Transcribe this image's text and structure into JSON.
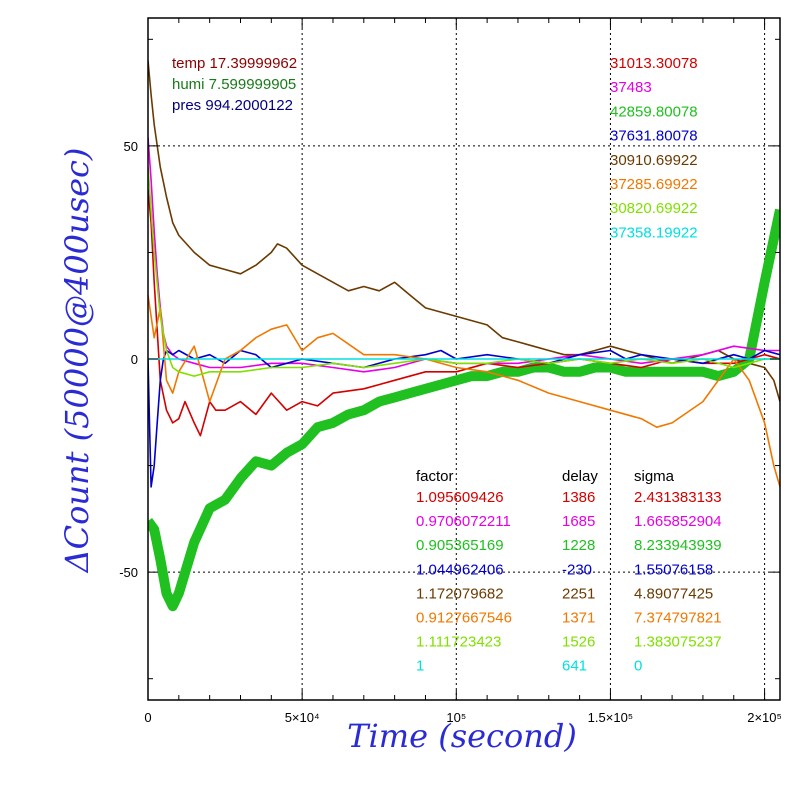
{
  "chart_data": {
    "type": "line",
    "title": "",
    "xlabel": "Time (second)",
    "ylabel": "ΔCount (50000@400usec)",
    "xlim": [
      0,
      205000
    ],
    "ylim": [
      -80,
      80
    ],
    "grid": true,
    "x_ticks": [
      {
        "value": 0,
        "label": "0"
      },
      {
        "value": 50000,
        "label": "5×10⁴"
      },
      {
        "value": 100000,
        "label": "10⁵"
      },
      {
        "value": 150000,
        "label": "1.5×10⁵"
      },
      {
        "value": 200000,
        "label": "2×10⁵"
      }
    ],
    "y_ticks": [
      {
        "value": 50,
        "label": "50"
      },
      {
        "value": 0,
        "label": "0"
      },
      {
        "value": -50,
        "label": "-50"
      }
    ],
    "env_readings": [
      {
        "text": "temp 17.39999962",
        "color": "#8b0000"
      },
      {
        "text": "humi 7.599999905",
        "color": "#1a7a1a"
      },
      {
        "text": "pres 994.2000122",
        "color": "#000080"
      }
    ],
    "counts": [
      {
        "text": "31013.30078",
        "color": "#d40000"
      },
      {
        "text": "37483",
        "color": "#e600e6"
      },
      {
        "text": "42859.80078",
        "color": "#20c020"
      },
      {
        "text": "37631.80078",
        "color": "#0000cc"
      },
      {
        "text": "30910.69922",
        "color": "#6b3a00"
      },
      {
        "text": "37285.69922",
        "color": "#f07800"
      },
      {
        "text": "30820.69922",
        "color": "#80e000"
      },
      {
        "text": "37358.19922",
        "color": "#00e0e0"
      }
    ],
    "table_headers": [
      "factor",
      "delay",
      "sigma"
    ],
    "table_rows": [
      {
        "factor": "1.095609426",
        "delay": "1386",
        "sigma": "2.431383133",
        "color": "#d40000"
      },
      {
        "factor": "0.9706072211",
        "delay": "1685",
        "sigma": "1.665852904",
        "color": "#e600e6"
      },
      {
        "factor": "0.905365169",
        "delay": "1228",
        "sigma": "8.233943939",
        "color": "#20c020"
      },
      {
        "factor": "1.044962406",
        "delay": "-230",
        "sigma": "1.55076158",
        "color": "#0000cc"
      },
      {
        "factor": "1.172079682",
        "delay": "2251",
        "sigma": "4.89077425",
        "color": "#6b3a00"
      },
      {
        "factor": "0.9127667546",
        "delay": "1371",
        "sigma": "7.374797821",
        "color": "#f07800"
      },
      {
        "factor": "1.111723423",
        "delay": "1526",
        "sigma": "1.383075237",
        "color": "#80e000"
      },
      {
        "factor": "1",
        "delay": "641",
        "sigma": "0",
        "color": "#00e0e0"
      }
    ],
    "series": [
      {
        "color": "#6b3a00",
        "x": [
          0,
          1000,
          2000,
          4000,
          6000,
          8000,
          10000,
          15000,
          20000,
          25000,
          30000,
          35000,
          40000,
          42000,
          45000,
          50000,
          55000,
          60000,
          65000,
          70000,
          75000,
          80000,
          85000,
          90000,
          95000,
          100000,
          105000,
          110000,
          115000,
          120000,
          125000,
          130000,
          135000,
          140000,
          145000,
          150000,
          155000,
          160000,
          165000,
          170000,
          175000,
          180000,
          185000,
          190000,
          195000,
          200000,
          203000,
          205000
        ],
        "y": [
          70,
          62,
          55,
          45,
          38,
          32,
          29,
          25,
          22,
          21,
          20,
          22,
          25,
          27,
          26,
          22,
          20,
          18,
          16,
          17,
          16,
          18,
          15,
          12,
          11,
          10,
          9,
          8,
          5,
          4,
          3,
          2,
          1,
          1,
          2,
          3,
          2,
          1,
          0,
          -1,
          0,
          1,
          2,
          0,
          -1,
          -2,
          -5,
          -10
        ]
      },
      {
        "color": "#20c020",
        "x": [
          0,
          2000,
          4000,
          6000,
          8000,
          10000,
          15000,
          20000,
          25000,
          30000,
          35000,
          40000,
          45000,
          50000,
          55000,
          60000,
          65000,
          70000,
          75000,
          80000,
          85000,
          90000,
          95000,
          100000,
          105000,
          110000,
          115000,
          120000,
          125000,
          130000,
          135000,
          140000,
          145000,
          150000,
          155000,
          160000,
          165000,
          170000,
          175000,
          180000,
          185000,
          190000,
          195000,
          200000,
          205000
        ],
        "y": [
          -38,
          -40,
          -47,
          -55,
          -58,
          -55,
          -43,
          -35,
          -33,
          -28,
          -24,
          -25,
          -22,
          -20,
          -16,
          -15,
          -13,
          -12,
          -10,
          -9,
          -8,
          -7,
          -6,
          -5,
          -4,
          -4,
          -3,
          -3,
          -2,
          -2,
          -3,
          -3,
          -2,
          -2,
          -3,
          -3,
          -3,
          -3,
          -3,
          -3,
          -4,
          -3,
          0,
          18,
          35
        ]
      },
      {
        "color": "#d40000",
        "x": [
          0,
          1000,
          2000,
          4000,
          6000,
          8000,
          10000,
          12000,
          15000,
          17000,
          20000,
          22000,
          25000,
          30000,
          35000,
          40000,
          45000,
          50000,
          55000,
          60000,
          70000,
          80000,
          90000,
          100000,
          110000,
          120000,
          130000,
          140000,
          150000,
          160000,
          170000,
          180000,
          190000,
          200000,
          205000
        ],
        "y": [
          40,
          32,
          18,
          -5,
          -12,
          -15,
          -14,
          -10,
          -15,
          -18,
          -10,
          -12,
          -12,
          -10,
          -13,
          -8,
          -12,
          -10,
          -11,
          -8,
          -7,
          -5,
          -3,
          -3,
          -1,
          -2,
          -1,
          0,
          -1,
          -2,
          0,
          -1,
          -1,
          1,
          0
        ]
      },
      {
        "color": "#e600e6",
        "x": [
          0,
          1000,
          2000,
          3000,
          4000,
          5000,
          6000,
          8000,
          10000,
          15000,
          20000,
          30000,
          40000,
          50000,
          60000,
          70000,
          80000,
          90000,
          100000,
          120000,
          140000,
          160000,
          180000,
          190000,
          200000,
          205000
        ],
        "y": [
          52,
          42,
          30,
          20,
          12,
          6,
          3,
          1,
          0,
          -1,
          -2,
          -2,
          -1,
          -1,
          -2,
          -3,
          -2,
          0,
          -1,
          -1,
          1,
          -1,
          1,
          3,
          2,
          2
        ]
      },
      {
        "color": "#0000cc",
        "x": [
          0,
          500,
          1000,
          2000,
          3000,
          4000,
          5000,
          6000,
          8000,
          10000,
          15000,
          20000,
          25000,
          30000,
          35000,
          40000,
          45000,
          50000,
          60000,
          70000,
          80000,
          90000,
          95000,
          100000,
          110000,
          120000,
          130000,
          140000,
          150000,
          155000,
          160000,
          170000,
          180000,
          190000,
          195000,
          200000,
          205000
        ],
        "y": [
          0,
          -15,
          -30,
          -25,
          -15,
          -5,
          0,
          2,
          1,
          2,
          0,
          1,
          -1,
          2,
          1,
          -2,
          -1,
          0,
          -1,
          -2,
          0,
          1,
          2,
          0,
          1,
          0,
          -1,
          1,
          2,
          0,
          1,
          0,
          -1,
          1,
          0,
          2,
          1
        ]
      },
      {
        "color": "#f07800",
        "x": [
          0,
          2000,
          4000,
          6000,
          8000,
          10000,
          15000,
          17000,
          20000,
          25000,
          30000,
          35000,
          40000,
          45000,
          50000,
          55000,
          60000,
          70000,
          80000,
          90000,
          100000,
          110000,
          120000,
          130000,
          140000,
          150000,
          160000,
          165000,
          170000,
          180000,
          185000,
          190000,
          195000,
          200000,
          203000,
          205000
        ],
        "y": [
          15,
          5,
          12,
          -5,
          -8,
          -3,
          3,
          -2,
          -10,
          0,
          2,
          5,
          7,
          8,
          2,
          5,
          6,
          1,
          1,
          0,
          -2,
          -3,
          -5,
          -8,
          -10,
          -12,
          -14,
          -16,
          -15,
          -10,
          -5,
          0,
          -5,
          -15,
          -25,
          -30
        ]
      },
      {
        "color": "#80e000",
        "x": [
          0,
          2000,
          4000,
          6000,
          8000,
          10000,
          15000,
          20000,
          30000,
          40000,
          50000,
          60000,
          70000,
          80000,
          90000,
          100000,
          110000,
          120000,
          130000,
          140000,
          150000,
          160000,
          170000,
          180000,
          190000,
          195000,
          200000,
          205000
        ],
        "y": [
          45,
          25,
          10,
          2,
          -2,
          -3,
          -4,
          -3,
          -3,
          -2,
          -2,
          -1,
          -2,
          -1,
          0,
          -1,
          -1,
          0,
          -1,
          0,
          -1,
          0,
          -1,
          0,
          -2,
          -1,
          0,
          0
        ]
      },
      {
        "color": "#00e0e0",
        "x": [
          0,
          205000
        ],
        "y": [
          0,
          0
        ]
      }
    ]
  }
}
